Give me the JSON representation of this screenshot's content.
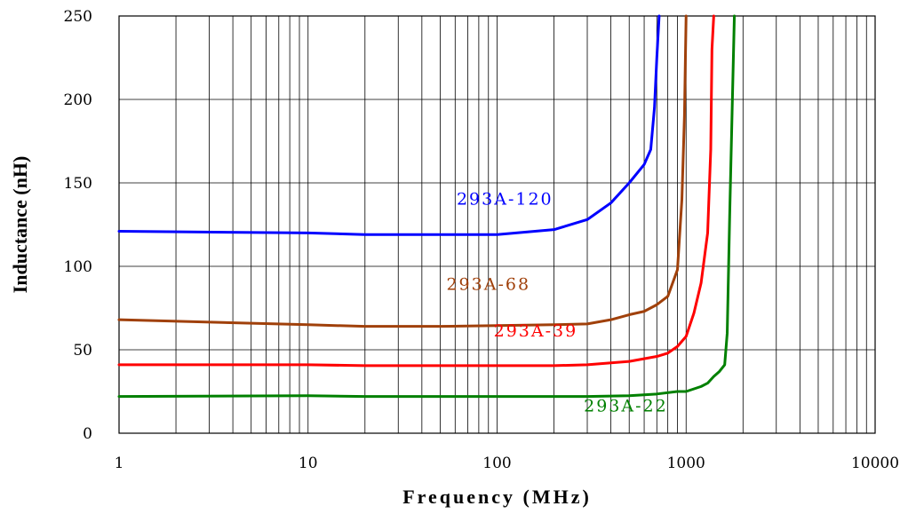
{
  "chart_data": {
    "type": "line",
    "xscale": "log",
    "xlim": [
      1,
      10000
    ],
    "ylim": [
      0,
      250
    ],
    "xlabel": "Frequency (MHz)",
    "ylabel": "Inductance (nH)",
    "x_ticks": [
      "1",
      "10",
      "100",
      "1000",
      "10000"
    ],
    "y_ticks": [
      "0",
      "50",
      "100",
      "150",
      "200",
      "250"
    ],
    "grid": {
      "x_minor_log": true,
      "y_major": true
    },
    "legend": "none (inline labels)",
    "series": [
      {
        "name": "293A-120",
        "color": "#0000ff",
        "points": [
          [
            1,
            121
          ],
          [
            10,
            120
          ],
          [
            20,
            119
          ],
          [
            50,
            119
          ],
          [
            100,
            119
          ],
          [
            200,
            122
          ],
          [
            300,
            128
          ],
          [
            400,
            138
          ],
          [
            500,
            150
          ],
          [
            600,
            161
          ],
          [
            650,
            170
          ],
          [
            680,
            195
          ],
          [
            700,
            225
          ],
          [
            720,
            250
          ]
        ]
      },
      {
        "name": "293A-68",
        "color": "#a0400a",
        "points": [
          [
            1,
            68
          ],
          [
            10,
            65
          ],
          [
            20,
            64
          ],
          [
            50,
            64
          ],
          [
            100,
            64.5
          ],
          [
            200,
            65
          ],
          [
            300,
            65.5
          ],
          [
            400,
            68
          ],
          [
            500,
            71
          ],
          [
            600,
            73
          ],
          [
            700,
            77
          ],
          [
            800,
            82
          ],
          [
            900,
            98
          ],
          [
            950,
            140
          ],
          [
            980,
            190
          ],
          [
            1000,
            250
          ]
        ]
      },
      {
        "name": "293A-39",
        "color": "#ff0000",
        "points": [
          [
            1,
            41
          ],
          [
            10,
            41
          ],
          [
            20,
            40.5
          ],
          [
            50,
            40.5
          ],
          [
            100,
            40.5
          ],
          [
            200,
            40.5
          ],
          [
            300,
            41
          ],
          [
            500,
            43
          ],
          [
            700,
            46
          ],
          [
            800,
            48
          ],
          [
            900,
            52
          ],
          [
            1000,
            58
          ],
          [
            1100,
            72
          ],
          [
            1200,
            90
          ],
          [
            1300,
            120
          ],
          [
            1350,
            170
          ],
          [
            1370,
            230
          ],
          [
            1400,
            250
          ]
        ]
      },
      {
        "name": "293A-22",
        "color": "#008000",
        "points": [
          [
            1,
            22
          ],
          [
            10,
            22.5
          ],
          [
            20,
            22
          ],
          [
            50,
            22
          ],
          [
            100,
            22
          ],
          [
            200,
            22
          ],
          [
            300,
            22
          ],
          [
            500,
            22.5
          ],
          [
            700,
            23.5
          ],
          [
            900,
            25
          ],
          [
            1000,
            25
          ],
          [
            1200,
            28
          ],
          [
            1300,
            30
          ],
          [
            1400,
            34
          ],
          [
            1500,
            37
          ],
          [
            1600,
            41
          ],
          [
            1650,
            60
          ],
          [
            1700,
            130
          ],
          [
            1800,
            250
          ]
        ]
      }
    ],
    "labels": [
      {
        "text": "293A-120",
        "color": "#0000ff",
        "x": 110,
        "y": 137
      },
      {
        "text": "293A-68",
        "color": "#a0400a",
        "x": 90,
        "y": 86
      },
      {
        "text": "293A-39",
        "color": "#ff0000",
        "x": 160,
        "y": 58
      },
      {
        "text": "293A-22",
        "color": "#008000",
        "x": 480,
        "y": 13
      }
    ]
  }
}
